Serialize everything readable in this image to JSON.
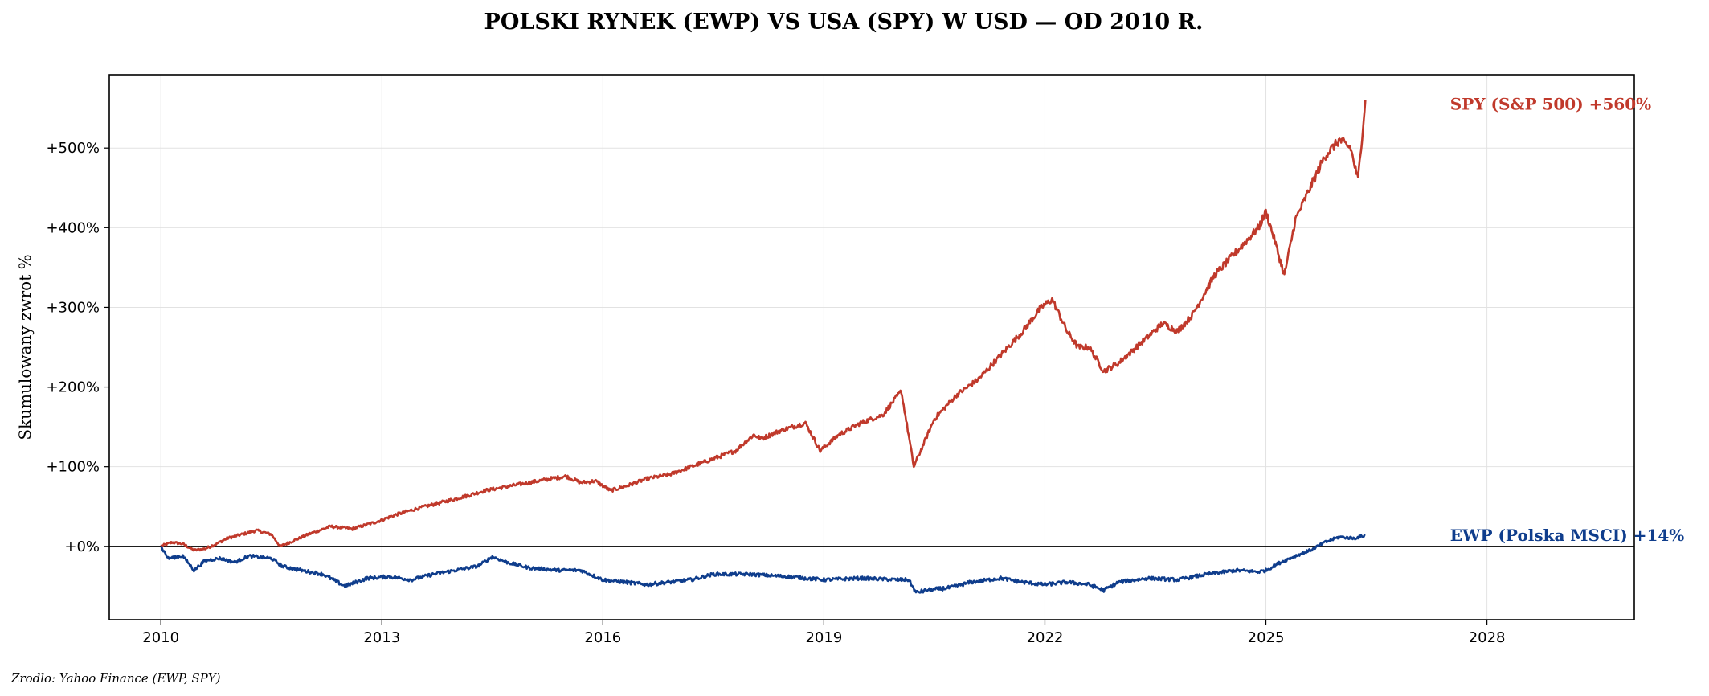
{
  "chart_data": {
    "type": "line",
    "title": "POLSKI RYNEK (EWP) VS USA (SPY) W USD — OD 2010 R.",
    "ylabel": "Skumulowany zwrot %",
    "xlabel": "",
    "source": "Zrodlo: Yahoo Finance (EWP, SPY)",
    "xlim": [
      2009.3,
      2030.0
    ],
    "ylim": [
      -92,
      592
    ],
    "x_ticks": [
      2010,
      2013,
      2016,
      2019,
      2022,
      2025,
      2028
    ],
    "y_ticks": [
      0,
      100,
      200,
      300,
      400,
      500
    ],
    "y_tick_labels": [
      "+0%",
      "+100%",
      "+200%",
      "+300%",
      "+400%",
      "+500%"
    ],
    "grid": true,
    "zero_line": true,
    "colors": {
      "spy": "#c0392b",
      "ewp": "#0f3d8c"
    },
    "series": [
      {
        "name": "SPY (S&P 500)",
        "end_label": "SPY (S&P 500)  +560%",
        "color": "#c0392b",
        "x": [
          2010.0,
          2010.15,
          2010.3,
          2010.45,
          2010.6,
          2010.75,
          2010.9,
          2011.1,
          2011.3,
          2011.5,
          2011.62,
          2011.75,
          2012.0,
          2012.3,
          2012.6,
          2012.9,
          2013.2,
          2013.5,
          2013.8,
          2014.1,
          2014.4,
          2014.7,
          2015.0,
          2015.3,
          2015.5,
          2015.7,
          2015.9,
          2016.1,
          2016.3,
          2016.6,
          2016.9,
          2017.2,
          2017.5,
          2017.8,
          2018.05,
          2018.15,
          2018.4,
          2018.75,
          2018.95,
          2019.2,
          2019.5,
          2019.8,
          2020.05,
          2020.15,
          2020.22,
          2020.5,
          2020.8,
          2021.1,
          2021.4,
          2021.7,
          2021.95,
          2022.1,
          2022.3,
          2022.45,
          2022.6,
          2022.8,
          2023.0,
          2023.3,
          2023.6,
          2023.8,
          2024.0,
          2024.3,
          2024.6,
          2024.9,
          2025.0,
          2025.1,
          2025.25,
          2025.4,
          2025.6,
          2025.8,
          2026.0,
          2026.15,
          2026.25,
          2026.35
        ],
        "values": [
          0,
          5,
          3,
          -5,
          -3,
          3,
          10,
          15,
          20,
          15,
          0,
          5,
          15,
          25,
          22,
          30,
          40,
          48,
          55,
          62,
          70,
          75,
          80,
          85,
          88,
          80,
          82,
          70,
          75,
          85,
          90,
          100,
          110,
          120,
          140,
          135,
          145,
          155,
          120,
          140,
          155,
          165,
          195,
          140,
          100,
          160,
          190,
          210,
          240,
          270,
          300,
          310,
          270,
          250,
          250,
          220,
          230,
          255,
          280,
          270,
          290,
          340,
          370,
          400,
          420,
          390,
          340,
          410,
          450,
          490,
          510,
          500,
          460,
          560
        ]
      },
      {
        "name": "EWP (Polska MSCI)",
        "end_label": "EWP (Polska MSCI)  +14%",
        "color": "#0f3d8c",
        "x": [
          2010.0,
          2010.1,
          2010.3,
          2010.45,
          2010.6,
          2010.8,
          2011.0,
          2011.2,
          2011.5,
          2011.65,
          2011.9,
          2012.2,
          2012.5,
          2012.8,
          2013.1,
          2013.4,
          2013.7,
          2014.0,
          2014.3,
          2014.5,
          2014.7,
          2015.0,
          2015.4,
          2015.7,
          2016.0,
          2016.3,
          2016.6,
          2016.9,
          2017.2,
          2017.5,
          2018.0,
          2018.5,
          2019.0,
          2019.5,
          2020.0,
          2020.15,
          2020.25,
          2020.4,
          2020.7,
          2021.0,
          2021.4,
          2021.7,
          2022.0,
          2022.3,
          2022.6,
          2022.8,
          2023.0,
          2023.4,
          2023.8,
          2024.2,
          2024.6,
          2024.9,
          2025.0,
          2025.2,
          2025.4,
          2025.6,
          2025.8,
          2026.0,
          2026.2,
          2026.35
        ],
        "values": [
          0,
          -15,
          -12,
          -30,
          -18,
          -15,
          -20,
          -12,
          -15,
          -25,
          -30,
          -35,
          -50,
          -40,
          -38,
          -42,
          -35,
          -30,
          -25,
          -13,
          -20,
          -27,
          -30,
          -30,
          -42,
          -45,
          -48,
          -45,
          -42,
          -35,
          -35,
          -38,
          -42,
          -40,
          -42,
          -42,
          -58,
          -55,
          -52,
          -45,
          -40,
          -45,
          -48,
          -45,
          -48,
          -55,
          -45,
          -40,
          -42,
          -35,
          -30,
          -32,
          -30,
          -20,
          -12,
          -5,
          5,
          12,
          10,
          14
        ]
      }
    ]
  }
}
